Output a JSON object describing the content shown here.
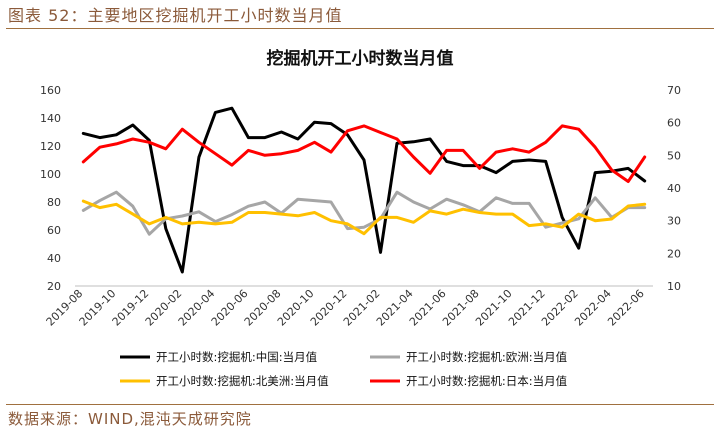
{
  "figure_title": "图表 52：主要地区挖掘机开工小时数当月值",
  "source": "数据来源：WIND,混沌天成研究院",
  "chart_data": {
    "type": "line",
    "title": "挖掘机开工小时数当月值",
    "x": [
      "2019-08",
      "2019-09",
      "2019-10",
      "2019-11",
      "2019-12",
      "2020-01",
      "2020-02",
      "2020-03",
      "2020-04",
      "2020-05",
      "2020-06",
      "2020-07",
      "2020-08",
      "2020-09",
      "2020-10",
      "2020-11",
      "2020-12",
      "2021-01",
      "2021-02",
      "2021-03",
      "2021-04",
      "2021-05",
      "2021-06",
      "2021-07",
      "2021-08",
      "2021-09",
      "2021-10",
      "2021-11",
      "2021-12",
      "2022-01",
      "2022-02",
      "2022-03",
      "2022-04",
      "2022-05",
      "2022-06"
    ],
    "x_tick_labels": [
      "2019-08",
      "2019-10",
      "2019-12",
      "2020-02",
      "2020-04",
      "2020-06",
      "2020-08",
      "2020-10",
      "2020-12",
      "2021-02",
      "2021-04",
      "2021-06",
      "2021-08",
      "2021-10",
      "2021-12",
      "2022-02",
      "2022-04",
      "2022-06"
    ],
    "y_left": {
      "min": 20,
      "max": 160,
      "ticks": [
        20,
        40,
        60,
        80,
        100,
        120,
        140,
        160
      ]
    },
    "y_right": {
      "min": 10,
      "max": 70,
      "ticks": [
        10,
        20,
        30,
        40,
        50,
        60,
        70
      ]
    },
    "series": [
      {
        "name": "开工小时数:挖掘机:中国:当月值",
        "axis": "left",
        "color": "#000000",
        "values": [
          129,
          126,
          128,
          135,
          124,
          61,
          30,
          112,
          144,
          147,
          126,
          126,
          130,
          125,
          137,
          136,
          128,
          110,
          44,
          122,
          123,
          125,
          109,
          106,
          106,
          101,
          109,
          110,
          109,
          69,
          47,
          101,
          102,
          104,
          95
        ]
      },
      {
        "name": "开工小时数:挖掘机:欧洲:当月值",
        "axis": "left",
        "color": "#a6a6a6",
        "values": [
          74,
          81,
          87,
          77,
          57,
          68,
          70,
          73,
          66,
          71,
          77,
          80,
          72,
          82,
          81,
          80,
          61,
          62,
          68,
          87,
          80,
          75,
          82,
          78,
          73,
          83,
          79,
          79,
          62,
          65,
          68,
          83,
          69,
          76,
          76
        ]
      },
      {
        "name": "开工小时数:挖掘机:北美洲:当月值",
        "axis": "right",
        "color": "#ffc000",
        "values": [
          36,
          34,
          35,
          32,
          29,
          31,
          29,
          29.5,
          29,
          29.5,
          32.5,
          32.5,
          32,
          31.5,
          32.5,
          30,
          29,
          26,
          31,
          31,
          29.5,
          33,
          32,
          33.5,
          32.5,
          32,
          32,
          28.5,
          29,
          28,
          32,
          30,
          30.5,
          34.5,
          35
        ]
      },
      {
        "name": "开工小时数:挖掘机:日本:当月值",
        "axis": "right",
        "color": "#ff0000",
        "values": [
          48,
          52.5,
          53.5,
          55,
          54,
          52,
          58,
          54,
          50.5,
          47,
          51.5,
          50,
          50.5,
          51.5,
          54,
          51,
          57.5,
          59,
          57,
          55,
          49.5,
          44.5,
          51.5,
          51.5,
          46,
          51,
          52,
          51,
          54,
          59,
          58,
          52.5,
          45.5,
          42,
          49.5
        ]
      }
    ]
  }
}
